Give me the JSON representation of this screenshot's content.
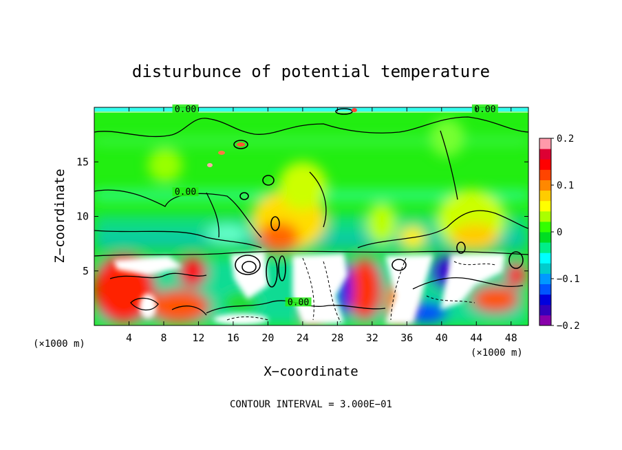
{
  "chart_data": {
    "type": "heatmap",
    "title": "disturbunce of potential temperature",
    "xlabel": "X−coordinate",
    "ylabel": "Z−coordinate",
    "x_unit_left": "(×1000 m)",
    "x_unit_right": "(×1000 m)",
    "xlim": [
      0,
      50
    ],
    "ylim": [
      0,
      20
    ],
    "x_ticks": [
      4,
      8,
      12,
      16,
      20,
      24,
      28,
      32,
      36,
      40,
      44,
      48
    ],
    "y_ticks": [
      5,
      10,
      15
    ],
    "colorbar": {
      "range": [
        -0.2,
        0.2
      ],
      "ticks": [
        {
          "v": 0.2,
          "label": "0.2"
        },
        {
          "v": 0.1,
          "label": "0.1"
        },
        {
          "v": 0,
          "label": "0"
        },
        {
          "v": -0.1,
          "label": "−0.1"
        },
        {
          "v": -0.2,
          "label": "−0.2"
        }
      ],
      "colors": [
        "#8800aa",
        "#3300bb",
        "#0000dd",
        "#0055ff",
        "#0099ff",
        "#00cccc",
        "#00ffff",
        "#00ee88",
        "#00dd22",
        "#33ff00",
        "#aaff00",
        "#ffff00",
        "#ffcc00",
        "#ff8800",
        "#ff4400",
        "#ff0000",
        "#dd0033",
        "#ff99aa"
      ]
    },
    "contour_labels": [
      {
        "x": 10.5,
        "y": 19.7,
        "label": "0.00"
      },
      {
        "x": 10.5,
        "y": 12.1,
        "label": "0.00"
      },
      {
        "x": 23.5,
        "y": 2.0,
        "label": "0.00"
      },
      {
        "x": 45.0,
        "y": 19.7,
        "label": "0.00"
      }
    ],
    "footnote": "CONTOUR INTERVAL = 3.000E−01"
  }
}
